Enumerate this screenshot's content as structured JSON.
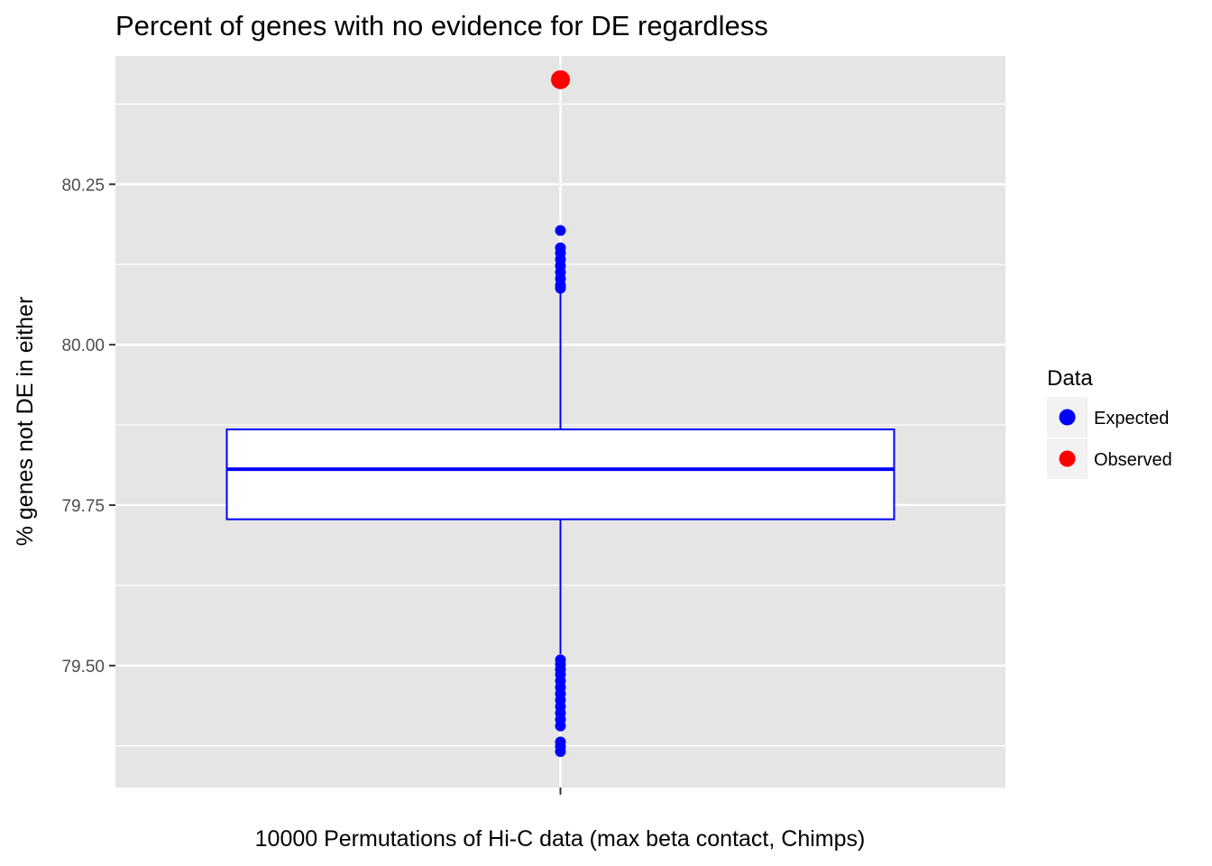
{
  "chart_data": {
    "type": "box",
    "title": "Percent of genes with no evidence for DE regardless",
    "xlabel": "10000 Permutations of Hi-C data (max beta contact, Chimps)",
    "ylabel": "% genes not DE in either",
    "ylim": [
      79.31,
      80.45
    ],
    "yticks": [
      79.5,
      79.75,
      80.0,
      80.25
    ],
    "ytick_labels": [
      "79.50",
      "79.75",
      "80.00",
      "80.25"
    ],
    "grid": true,
    "legend_position": "right",
    "legend": {
      "title": "Data",
      "entries": [
        {
          "label": "Expected",
          "color": "#0000ff"
        },
        {
          "label": "Observed",
          "color": "#ff0000"
        }
      ]
    },
    "box": {
      "series": "Expected",
      "q1": 79.728,
      "median": 79.806,
      "q3": 79.868,
      "whisker_low": 79.518,
      "whisker_high": 80.081,
      "outliers": [
        80.178,
        80.151,
        80.143,
        80.133,
        80.123,
        80.113,
        80.103,
        80.093,
        80.088,
        79.509,
        79.502,
        79.494,
        79.486,
        79.476,
        79.466,
        79.456,
        79.446,
        79.436,
        79.426,
        79.416,
        79.406,
        79.381,
        79.374,
        79.366
      ]
    },
    "observed": {
      "series": "Observed",
      "value": 80.413
    }
  },
  "colors": {
    "panel": "#e5e5e5",
    "grid": "#ffffff",
    "expected": "#0000ff",
    "observed": "#ff0000",
    "legend_key": "#f2f2f2"
  }
}
